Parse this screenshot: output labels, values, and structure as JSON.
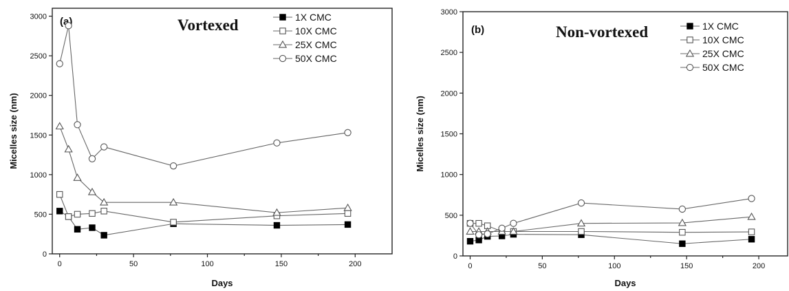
{
  "chart_data": [
    {
      "id": "a",
      "type": "line",
      "panel_label": "(a)",
      "title": "Vortexed",
      "xlabel": "Days",
      "ylabel": "Micelles size (nm)",
      "xlim": [
        -5,
        225
      ],
      "ylim": [
        0,
        3100
      ],
      "xticks": [
        0,
        50,
        100,
        150,
        200
      ],
      "yticks": [
        0,
        500,
        1000,
        1500,
        2000,
        2500,
        3000
      ],
      "legend_position": "top-right",
      "series": [
        {
          "name": "1X CMC",
          "marker": "square-filled",
          "x": [
            0,
            6,
            12,
            22,
            30,
            77,
            147,
            195
          ],
          "y": [
            540,
            470,
            310,
            330,
            235,
            380,
            360,
            370
          ]
        },
        {
          "name": "10X CMC",
          "marker": "square-open",
          "x": [
            0,
            6,
            12,
            22,
            30,
            77,
            147,
            195
          ],
          "y": [
            750,
            470,
            500,
            510,
            540,
            400,
            480,
            510
          ]
        },
        {
          "name": "25X CMC",
          "marker": "triangle-open",
          "x": [
            0,
            6,
            12,
            22,
            30,
            77,
            147,
            195
          ],
          "y": [
            1610,
            1320,
            960,
            780,
            650,
            650,
            520,
            580
          ]
        },
        {
          "name": "50X CMC",
          "marker": "circle-open",
          "x": [
            0,
            6,
            12,
            22,
            30,
            77,
            147,
            195
          ],
          "y": [
            2400,
            2880,
            1630,
            1200,
            1350,
            1110,
            1400,
            1530
          ]
        }
      ]
    },
    {
      "id": "b",
      "type": "line",
      "panel_label": "(b)",
      "title": "Non-vortexed",
      "xlabel": "Days",
      "ylabel": "Micelles size (nm)",
      "xlim": [
        -5,
        220
      ],
      "ylim": [
        0,
        3000
      ],
      "xticks": [
        0,
        50,
        100,
        150,
        200
      ],
      "yticks": [
        0,
        500,
        1000,
        1500,
        2000,
        2500,
        3000
      ],
      "legend_position": "top-right",
      "series": [
        {
          "name": "1X CMC",
          "marker": "square-filled",
          "x": [
            0,
            6,
            12,
            22,
            30,
            77,
            147,
            195
          ],
          "y": [
            180,
            195,
            240,
            245,
            265,
            260,
            150,
            205
          ]
        },
        {
          "name": "10X CMC",
          "marker": "square-open",
          "x": [
            0,
            6,
            12,
            22,
            30,
            77,
            147,
            195
          ],
          "y": [
            400,
            400,
            370,
            300,
            300,
            300,
            290,
            295
          ]
        },
        {
          "name": "25X CMC",
          "marker": "triangle-open",
          "x": [
            0,
            6,
            12,
            22,
            30,
            77,
            147,
            195
          ],
          "y": [
            300,
            300,
            300,
            300,
            300,
            400,
            405,
            480
          ]
        },
        {
          "name": "50X CMC",
          "marker": "circle-open",
          "x": [
            0,
            6,
            12,
            22,
            30,
            77,
            147,
            195
          ],
          "y": [
            400,
            260,
            270,
            340,
            400,
            650,
            575,
            705
          ]
        }
      ]
    }
  ]
}
